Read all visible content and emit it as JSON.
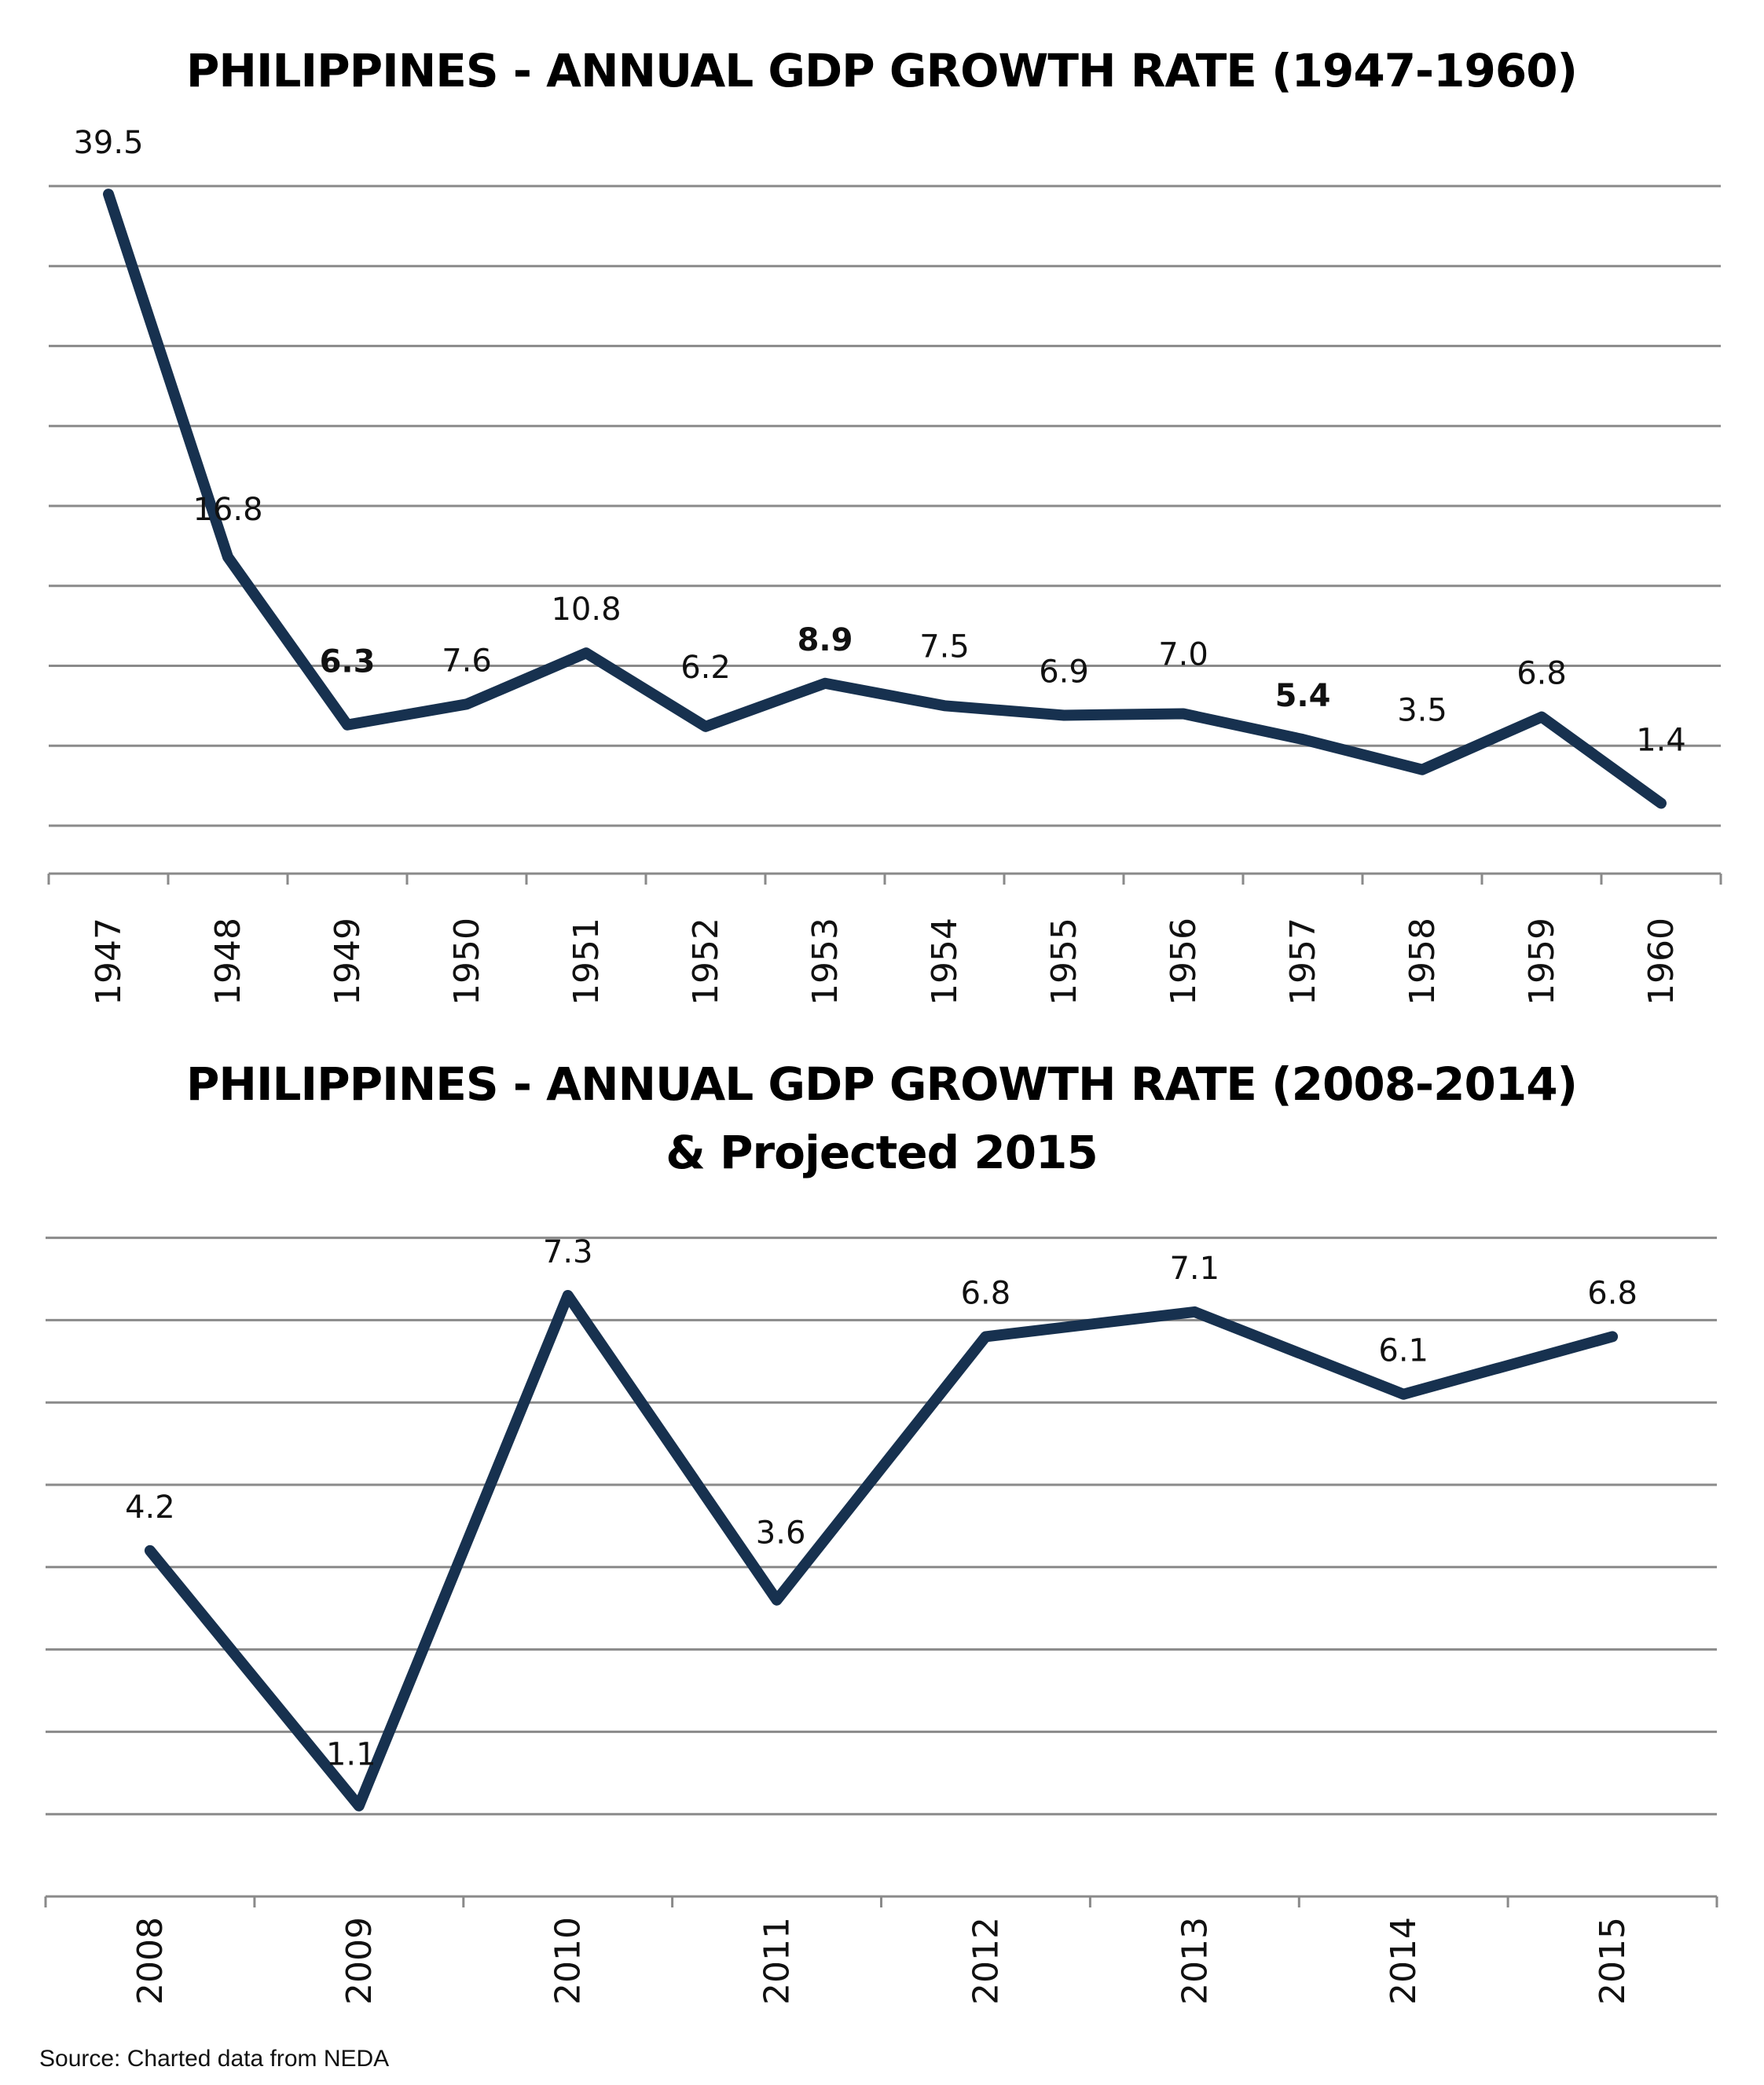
{
  "chart_data": [
    {
      "type": "line",
      "title": "PHILIPPINES - ANNUAL GDP GROWTH RATE (1947-1960)",
      "categories": [
        "1947",
        "1948",
        "1949",
        "1950",
        "1951",
        "1952",
        "1953",
        "1954",
        "1955",
        "1956",
        "1957",
        "1958",
        "1959",
        "1960"
      ],
      "values": [
        39.5,
        16.8,
        6.3,
        7.6,
        10.8,
        6.2,
        8.9,
        7.5,
        6.9,
        7.0,
        5.4,
        3.5,
        6.8,
        1.4
      ],
      "labels": [
        "39.5",
        "16.8",
        "6.3",
        "7.6",
        "10.8",
        "6.2",
        "8.9",
        "7.5",
        "6.9",
        "7.0",
        "5.4",
        "3.5",
        "6.8",
        "1.4"
      ],
      "bold_labels": [
        "1949",
        "1953",
        "1957"
      ],
      "xlabel": "",
      "ylabel": "",
      "ylim": [
        -3,
        42
      ],
      "grid_values": [
        0,
        5,
        10,
        15,
        20,
        25,
        30,
        35,
        40
      ],
      "grid": true,
      "legend": "none",
      "line_color": "#17314f"
    },
    {
      "type": "line",
      "title": "PHILIPPINES - ANNUAL GDP GROWTH RATE (2008-2014)",
      "subtitle": "& Projected 2015",
      "categories": [
        "2008",
        "2009",
        "2010",
        "2011",
        "2012",
        "2013",
        "2014",
        "2015"
      ],
      "values": [
        4.2,
        1.1,
        7.3,
        3.6,
        6.8,
        7.1,
        6.1,
        6.8
      ],
      "labels": [
        "4.2",
        "1.1",
        "7.3",
        "3.6",
        "6.8",
        "7.1",
        "6.1",
        "6.8"
      ],
      "bold_labels": [],
      "xlabel": "",
      "ylabel": "",
      "ylim": [
        0,
        8
      ],
      "grid_values": [
        1,
        2,
        3,
        4,
        5,
        6,
        7,
        8
      ],
      "grid": true,
      "legend": "none",
      "line_color": "#17314f"
    }
  ],
  "footer": {
    "source": "Source: Charted data from NEDA"
  }
}
